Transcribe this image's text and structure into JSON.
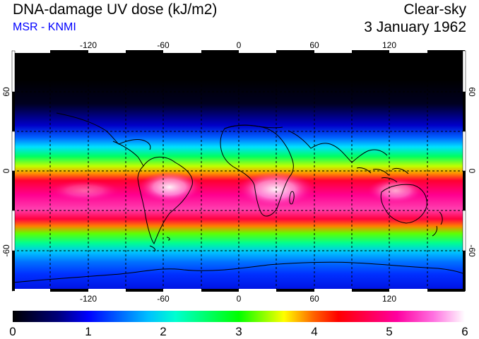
{
  "header": {
    "title": "DNA-damage UV dose (kJ/m2)",
    "source": "MSR - KNMI",
    "sky_condition": "Clear-sky",
    "date": "3 January 1962"
  },
  "map": {
    "longitude_ticks": [
      "-120",
      "-60",
      "0",
      "60",
      "120"
    ],
    "latitude_ticks": [
      "60",
      "0",
      "-60"
    ],
    "gridline_color": "#000000",
    "coastline_color": "#000000"
  },
  "colorbar": {
    "labels": [
      "0",
      "1",
      "2",
      "3",
      "4",
      "5",
      "6"
    ],
    "min": 0,
    "max": 6,
    "stops": [
      "#000000",
      "#0000ff",
      "#00ffff",
      "#00ff00",
      "#ffff00",
      "#ff0000",
      "#ff00ff",
      "#ffffff"
    ]
  }
}
